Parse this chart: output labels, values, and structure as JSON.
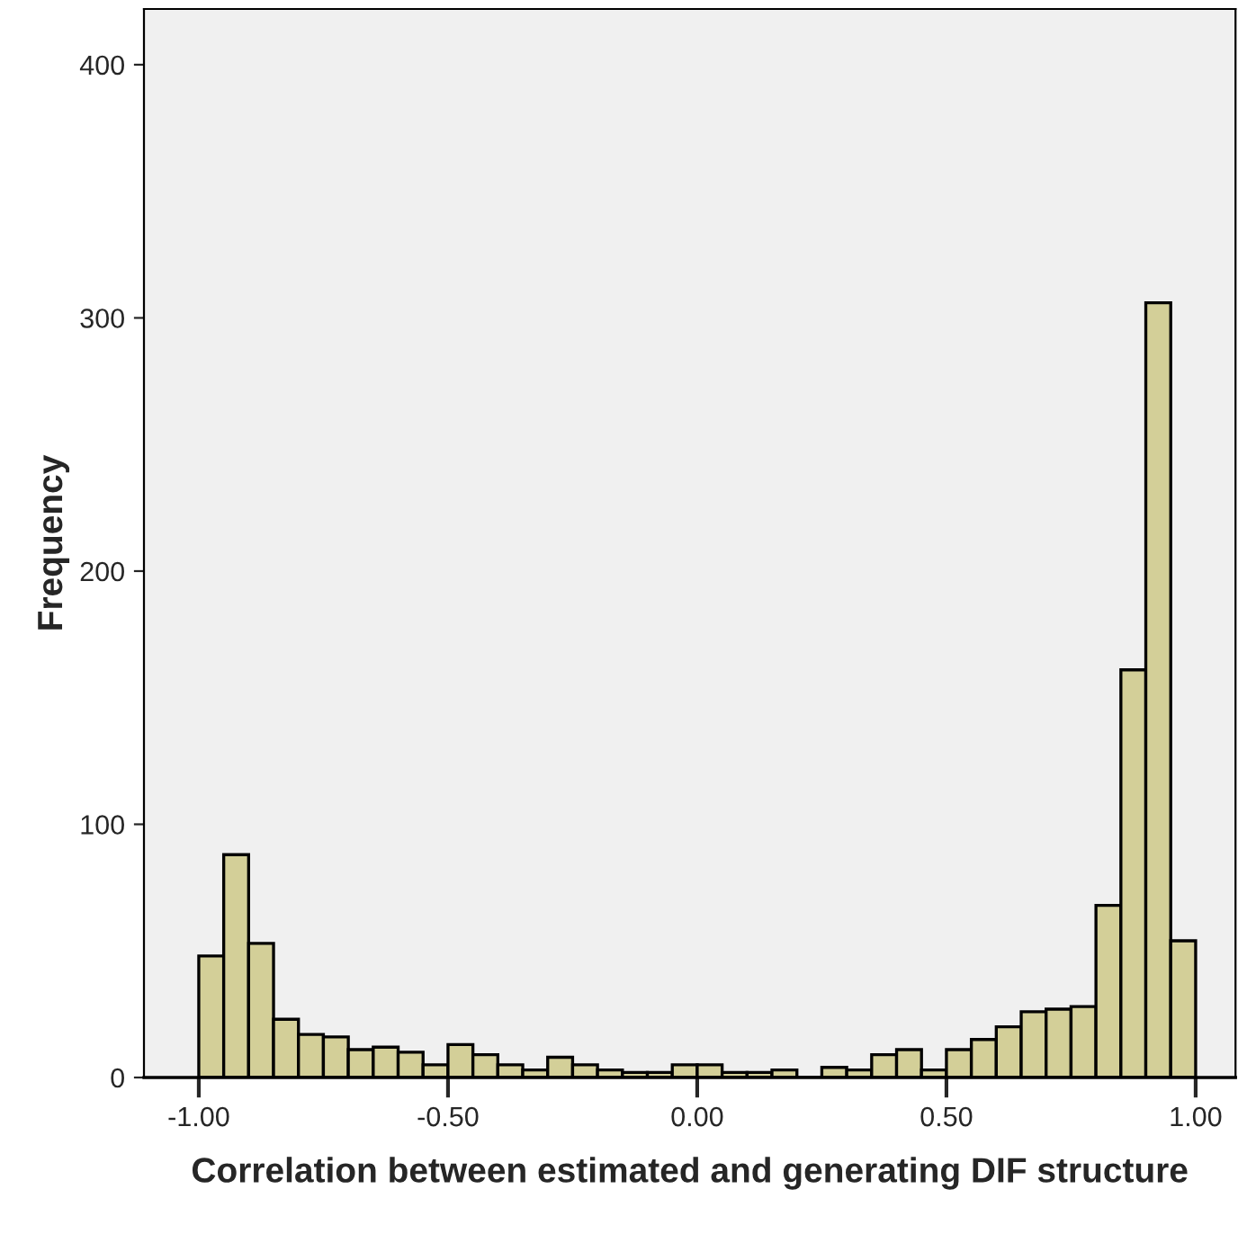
{
  "chart_data": {
    "type": "histogram",
    "xlabel": "Correlation between estimated and generating DIF structure",
    "ylabel": "Frequency",
    "bins": [
      -1.0,
      -0.95,
      -0.9,
      -0.85,
      -0.8,
      -0.75,
      -0.7,
      -0.65,
      -0.6,
      -0.55,
      -0.5,
      -0.45,
      -0.4,
      -0.35,
      -0.3,
      -0.25,
      -0.2,
      -0.15,
      -0.1,
      -0.05,
      0.0,
      0.05,
      0.1,
      0.15,
      0.2,
      0.25,
      0.3,
      0.35,
      0.4,
      0.45,
      0.5,
      0.55,
      0.6,
      0.65,
      0.7,
      0.75,
      0.8,
      0.85,
      0.9,
      0.95,
      1.0
    ],
    "values": [
      48,
      88,
      53,
      23,
      17,
      16,
      11,
      12,
      10,
      5,
      13,
      9,
      5,
      3,
      8,
      5,
      3,
      2,
      2,
      5,
      5,
      2,
      2,
      3,
      0,
      4,
      3,
      9,
      11,
      3,
      11,
      15,
      20,
      26,
      27,
      28,
      68,
      161,
      306,
      54
    ],
    "color": "#d3cf98",
    "xlim": [
      -1.11,
      1.08
    ],
    "xticks": [
      {
        "value": -1,
        "label": "-1.00"
      },
      {
        "value": -0.5,
        "label": "-0.50"
      },
      {
        "value": 0,
        "label": "0.00"
      },
      {
        "value": 0.5,
        "label": "0.50"
      },
      {
        "value": 1,
        "label": "1.00"
      }
    ],
    "ylim": [
      0,
      422
    ],
    "yticks": [
      0,
      100,
      200,
      300,
      400
    ],
    "grid": false
  }
}
